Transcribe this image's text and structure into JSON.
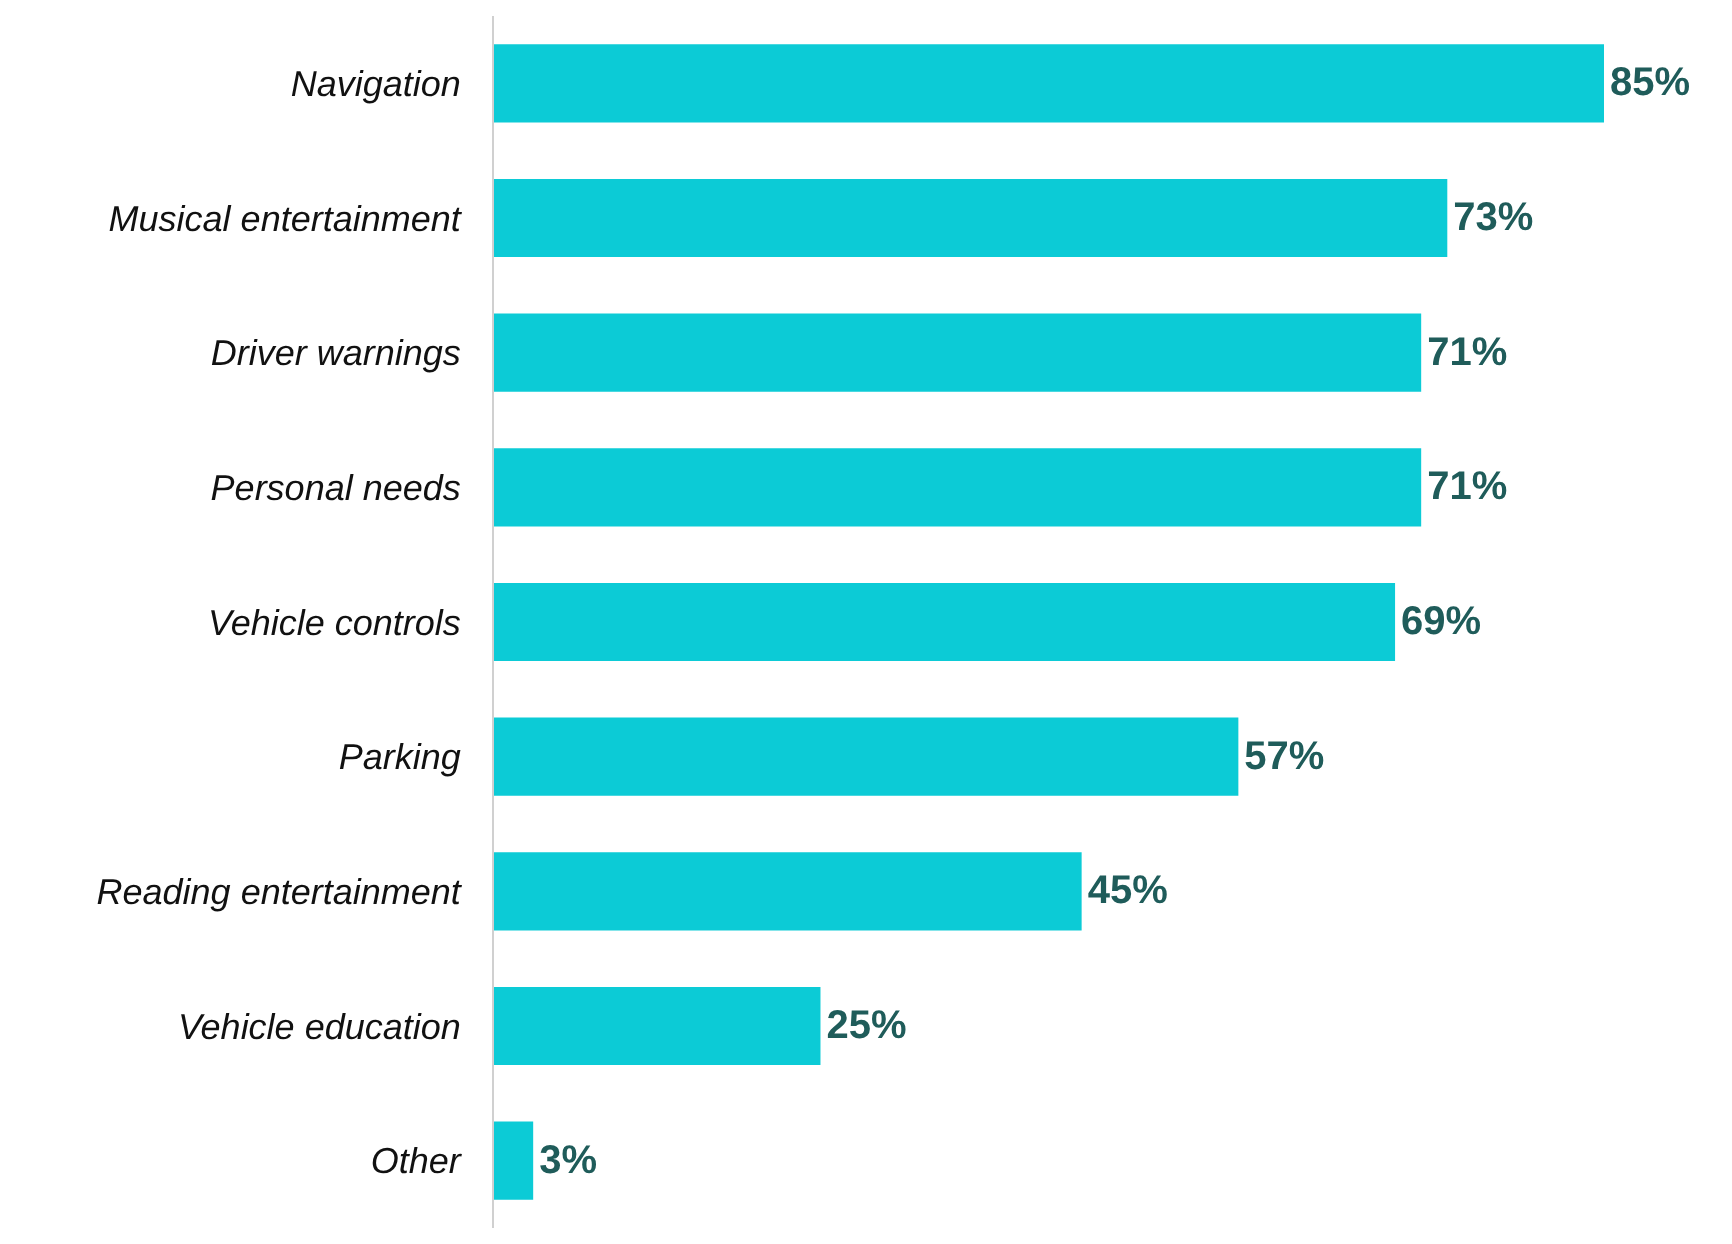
{
  "chart_data": {
    "type": "bar",
    "orientation": "horizontal",
    "categories": [
      "Navigation",
      "Musical entertainment",
      "Driver warnings",
      "Personal needs",
      "Vehicle controls",
      "Parking",
      "Reading entertainment",
      "Vehicle education",
      "Other"
    ],
    "values": [
      85,
      73,
      71,
      71,
      69,
      57,
      45,
      25,
      3
    ],
    "value_labels": [
      "85%",
      "73%",
      "71%",
      "71%",
      "69%",
      "57%",
      "45%",
      "25%",
      "3%"
    ],
    "color": "#0ccbd6"
  }
}
